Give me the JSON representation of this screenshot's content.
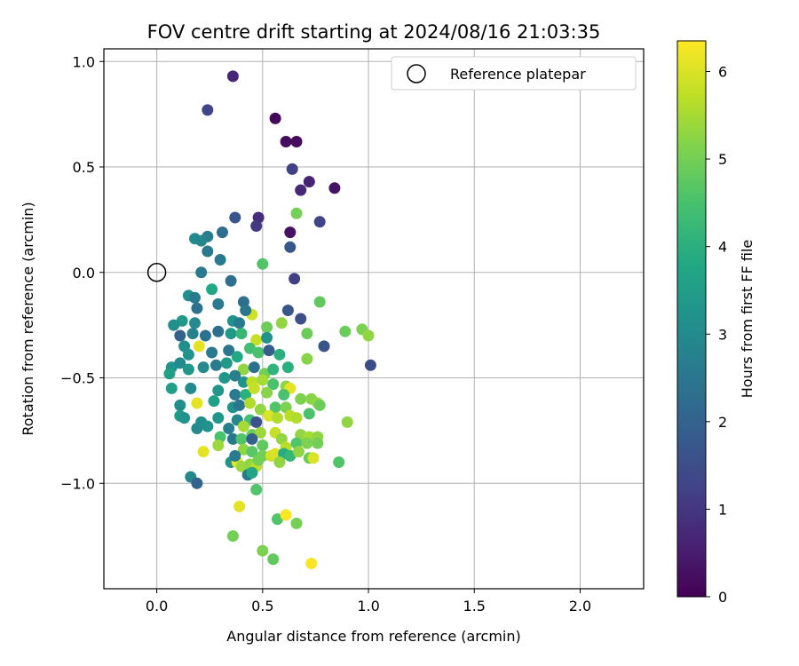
{
  "chart_data": {
    "type": "scatter",
    "title": "FOV centre drift starting at 2024/08/16 21:03:35",
    "xlabel": "Angular distance from reference (arcmin)",
    "ylabel": "Rotation from reference (arcmin)",
    "xlim": [
      -0.25,
      2.3
    ],
    "ylim": [
      -1.5,
      1.06
    ],
    "xticks": [
      0.0,
      0.5,
      1.0,
      1.5,
      2.0
    ],
    "xtick_labels": [
      "0.0",
      "0.5",
      "1.0",
      "1.5",
      "2.0"
    ],
    "yticks": [
      -1.0,
      -0.5,
      0.0,
      0.5,
      1.0
    ],
    "ytick_labels": [
      "−1.0",
      "−0.5",
      "0.0",
      "0.5",
      "1.0"
    ],
    "grid": true,
    "legend": {
      "position": "top-right",
      "entries": [
        "Reference platepar"
      ]
    },
    "reference_point": {
      "x": 0.0,
      "y": 0.0
    },
    "colorbar": {
      "label": "Hours from first FF file",
      "colormap": "viridis",
      "range": [
        0,
        6.35
      ],
      "ticks": [
        0,
        1,
        2,
        3,
        4,
        5,
        6
      ],
      "tick_labels": [
        "0",
        "1",
        "2",
        "3",
        "4",
        "5",
        "6"
      ]
    },
    "points": [
      [
        0.36,
        0.93,
        0.7
      ],
      [
        0.24,
        0.77,
        1.3
      ],
      [
        0.56,
        0.73,
        0.1
      ],
      [
        0.61,
        0.62,
        0.2
      ],
      [
        0.66,
        0.62,
        0.2
      ],
      [
        0.64,
        0.49,
        1.2
      ],
      [
        0.72,
        0.43,
        0.6
      ],
      [
        0.68,
        0.39,
        0.7
      ],
      [
        0.84,
        0.4,
        0.3
      ],
      [
        0.37,
        0.26,
        1.7
      ],
      [
        0.48,
        0.26,
        0.8
      ],
      [
        0.66,
        0.28,
        5.0
      ],
      [
        0.77,
        0.24,
        1.3
      ],
      [
        0.47,
        0.22,
        1.1
      ],
      [
        0.63,
        0.19,
        0.3
      ],
      [
        0.31,
        0.19,
        2.3
      ],
      [
        0.24,
        0.17,
        2.7
      ],
      [
        0.18,
        0.16,
        3.0
      ],
      [
        0.21,
        0.15,
        2.9
      ],
      [
        0.63,
        0.12,
        1.7
      ],
      [
        0.24,
        0.1,
        2.6
      ],
      [
        0.3,
        0.06,
        2.6
      ],
      [
        0.5,
        0.04,
        4.6
      ],
      [
        0.21,
        0.0,
        2.6
      ],
      [
        0.65,
        -0.03,
        1.2
      ],
      [
        0.35,
        -0.04,
        2.3
      ],
      [
        0.26,
        -0.08,
        3.8
      ],
      [
        0.15,
        -0.11,
        3.1
      ],
      [
        0.18,
        -0.12,
        2.6
      ],
      [
        0.19,
        -0.17,
        2.4
      ],
      [
        0.29,
        -0.15,
        2.6
      ],
      [
        0.41,
        -0.14,
        2.3
      ],
      [
        0.62,
        -0.18,
        1.7
      ],
      [
        0.77,
        -0.14,
        4.8
      ],
      [
        0.45,
        -0.2,
        5.9
      ],
      [
        0.42,
        -0.18,
        2.5
      ],
      [
        0.12,
        -0.23,
        3.4
      ],
      [
        0.08,
        -0.25,
        3.1
      ],
      [
        0.18,
        -0.24,
        3.0
      ],
      [
        0.36,
        -0.23,
        3.2
      ],
      [
        0.52,
        -0.26,
        4.9
      ],
      [
        0.68,
        -0.22,
        1.5
      ],
      [
        0.59,
        -0.24,
        5.3
      ],
      [
        0.39,
        -0.24,
        2.6
      ],
      [
        0.11,
        -0.3,
        2.0
      ],
      [
        0.17,
        -0.29,
        2.8
      ],
      [
        0.23,
        -0.3,
        2.4
      ],
      [
        0.29,
        -0.28,
        2.3
      ],
      [
        0.35,
        -0.29,
        3.4
      ],
      [
        0.4,
        -0.29,
        4.2
      ],
      [
        0.47,
        -0.32,
        5.8
      ],
      [
        0.52,
        -0.31,
        3.2
      ],
      [
        0.71,
        -0.29,
        4.9
      ],
      [
        0.89,
        -0.28,
        4.9
      ],
      [
        0.97,
        -0.27,
        5.1
      ],
      [
        1.0,
        -0.3,
        5.3
      ],
      [
        0.13,
        -0.35,
        3.1
      ],
      [
        0.2,
        -0.35,
        6.1
      ],
      [
        0.15,
        -0.39,
        3.2
      ],
      [
        0.26,
        -0.38,
        2.6
      ],
      [
        0.34,
        -0.37,
        2.5
      ],
      [
        0.38,
        -0.4,
        3.8
      ],
      [
        0.44,
        -0.36,
        4.4
      ],
      [
        0.48,
        -0.38,
        4.5
      ],
      [
        0.53,
        -0.37,
        1.9
      ],
      [
        0.58,
        -0.39,
        4.0
      ],
      [
        0.79,
        -0.35,
        1.7
      ],
      [
        1.01,
        -0.44,
        1.4
      ],
      [
        0.07,
        -0.45,
        3.2
      ],
      [
        0.11,
        -0.43,
        3.0
      ],
      [
        0.15,
        -0.46,
        3.3
      ],
      [
        0.22,
        -0.45,
        3.0
      ],
      [
        0.28,
        -0.44,
        2.6
      ],
      [
        0.33,
        -0.43,
        3.4
      ],
      [
        0.41,
        -0.46,
        5.3
      ],
      [
        0.46,
        -0.45,
        2.4
      ],
      [
        0.51,
        -0.48,
        5.0
      ],
      [
        0.55,
        -0.46,
        4.1
      ],
      [
        0.62,
        -0.45,
        4.0
      ],
      [
        0.71,
        -0.41,
        5.2
      ],
      [
        0.06,
        -0.48,
        3.6
      ],
      [
        0.32,
        -0.5,
        3.3
      ],
      [
        0.37,
        -0.49,
        2.7
      ],
      [
        0.41,
        -0.52,
        3.2
      ],
      [
        0.45,
        -0.52,
        5.7
      ],
      [
        0.5,
        -0.51,
        5.5
      ],
      [
        0.55,
        -0.53,
        4.5
      ],
      [
        0.61,
        -0.54,
        5.3
      ],
      [
        0.63,
        -0.55,
        6.1
      ],
      [
        0.07,
        -0.55,
        3.6
      ],
      [
        0.16,
        -0.55,
        3.0
      ],
      [
        0.29,
        -0.56,
        3.3
      ],
      [
        0.37,
        -0.58,
        2.6
      ],
      [
        0.42,
        -0.58,
        4.0
      ],
      [
        0.46,
        -0.55,
        5.8
      ],
      [
        0.52,
        -0.57,
        5.2
      ],
      [
        0.6,
        -0.58,
        4.5
      ],
      [
        0.68,
        -0.6,
        5.1
      ],
      [
        0.73,
        -0.6,
        5.2
      ],
      [
        0.76,
        -0.62,
        5.3
      ],
      [
        0.11,
        -0.63,
        3.1
      ],
      [
        0.19,
        -0.62,
        6.1
      ],
      [
        0.27,
        -0.61,
        3.6
      ],
      [
        0.36,
        -0.64,
        3.2
      ],
      [
        0.39,
        -0.63,
        2.5
      ],
      [
        0.44,
        -0.62,
        5.6
      ],
      [
        0.49,
        -0.65,
        5.3
      ],
      [
        0.56,
        -0.64,
        4.6
      ],
      [
        0.61,
        -0.64,
        5.1
      ],
      [
        0.72,
        -0.67,
        4.5
      ],
      [
        0.77,
        -0.63,
        4.9
      ],
      [
        0.11,
        -0.68,
        3.4
      ],
      [
        0.13,
        -0.69,
        3.2
      ],
      [
        0.29,
        -0.69,
        3.3
      ],
      [
        0.38,
        -0.7,
        2.9
      ],
      [
        0.44,
        -0.7,
        4.4
      ],
      [
        0.47,
        -0.71,
        1.6
      ],
      [
        0.53,
        -0.68,
        6.0
      ],
      [
        0.57,
        -0.69,
        5.6
      ],
      [
        0.63,
        -0.68,
        5.7
      ],
      [
        0.66,
        -0.69,
        5.6
      ],
      [
        0.9,
        -0.71,
        5.3
      ],
      [
        0.19,
        -0.74,
        3.0
      ],
      [
        0.21,
        -0.71,
        3.1
      ],
      [
        0.24,
        -0.73,
        3.2
      ],
      [
        0.34,
        -0.74,
        2.7
      ],
      [
        0.41,
        -0.73,
        5.5
      ],
      [
        0.45,
        -0.77,
        4.9
      ],
      [
        0.49,
        -0.76,
        5.4
      ],
      [
        0.56,
        -0.76,
        5.8
      ],
      [
        0.59,
        -0.79,
        5.3
      ],
      [
        0.68,
        -0.77,
        5.3
      ],
      [
        0.72,
        -0.78,
        5.5
      ],
      [
        0.76,
        -0.78,
        5.3
      ],
      [
        0.3,
        -0.78,
        4.5
      ],
      [
        0.36,
        -0.79,
        2.6
      ],
      [
        0.4,
        -0.79,
        4.6
      ],
      [
        0.45,
        -0.79,
        1.9
      ],
      [
        0.5,
        -0.82,
        4.8
      ],
      [
        0.61,
        -0.83,
        5.7
      ],
      [
        0.66,
        -0.81,
        4.6
      ],
      [
        0.71,
        -0.81,
        5.1
      ],
      [
        0.76,
        -0.81,
        5.0
      ],
      [
        0.22,
        -0.85,
        6.1
      ],
      [
        0.29,
        -0.82,
        5.4
      ],
      [
        0.41,
        -0.84,
        5.3
      ],
      [
        0.45,
        -0.85,
        4.7
      ],
      [
        0.5,
        -0.87,
        5.0
      ],
      [
        0.54,
        -0.87,
        5.9
      ],
      [
        0.56,
        -0.86,
        6.0
      ],
      [
        0.6,
        -0.86,
        3.9
      ],
      [
        0.63,
        -0.87,
        4.2
      ],
      [
        0.67,
        -0.85,
        5.3
      ],
      [
        0.72,
        -0.88,
        4.9
      ],
      [
        0.74,
        -0.88,
        6.0
      ],
      [
        0.35,
        -0.9,
        3.2
      ],
      [
        0.38,
        -0.9,
        6.1
      ],
      [
        0.4,
        -0.92,
        5.4
      ],
      [
        0.44,
        -0.91,
        5.3
      ],
      [
        0.47,
        -0.92,
        5.7
      ],
      [
        0.48,
        -0.89,
        5.0
      ],
      [
        0.58,
        -0.9,
        5.3
      ],
      [
        0.86,
        -0.9,
        4.6
      ],
      [
        0.37,
        -0.87,
        2.6
      ],
      [
        0.43,
        -0.96,
        2.6
      ],
      [
        0.45,
        -0.95,
        3.7
      ],
      [
        0.47,
        -1.03,
        4.6
      ],
      [
        0.16,
        -0.97,
        2.9
      ],
      [
        0.19,
        -1.0,
        2.0
      ],
      [
        0.39,
        -1.11,
        6.1
      ],
      [
        0.57,
        -1.17,
        4.6
      ],
      [
        0.61,
        -1.15,
        6.3
      ],
      [
        0.66,
        -1.19,
        5.0
      ],
      [
        0.36,
        -1.25,
        5.0
      ],
      [
        0.5,
        -1.32,
        5.1
      ],
      [
        0.55,
        -1.36,
        4.8
      ],
      [
        0.73,
        -1.38,
        6.3
      ]
    ]
  }
}
